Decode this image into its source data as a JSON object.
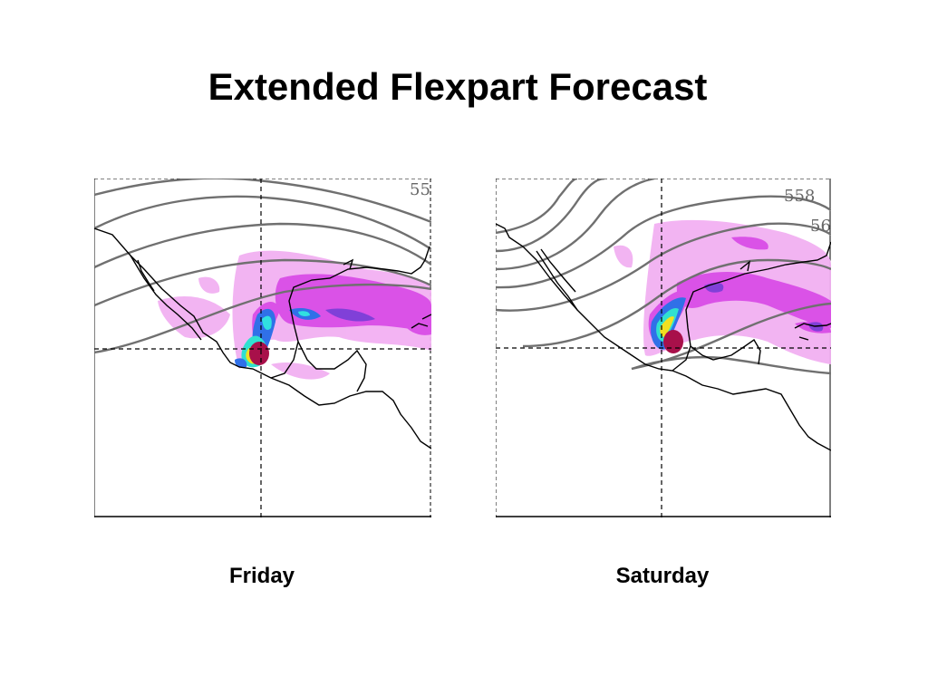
{
  "title": "Extended Flexpart Forecast",
  "panels": [
    {
      "id": "friday",
      "label": "Friday",
      "contour_labels": [
        "55"
      ]
    },
    {
      "id": "saturday",
      "label": "Saturday",
      "contour_labels": [
        "558",
        "56"
      ]
    }
  ],
  "colors": {
    "contour": "#707070",
    "coastline": "#000000",
    "plume_low": "#f0a8f0",
    "plume_mid": "#d040e0",
    "plume_high_blue": "#2060e0",
    "plume_cyan": "#20e0e0",
    "plume_yellow": "#f0e020",
    "plume_peak": "#a01040"
  }
}
